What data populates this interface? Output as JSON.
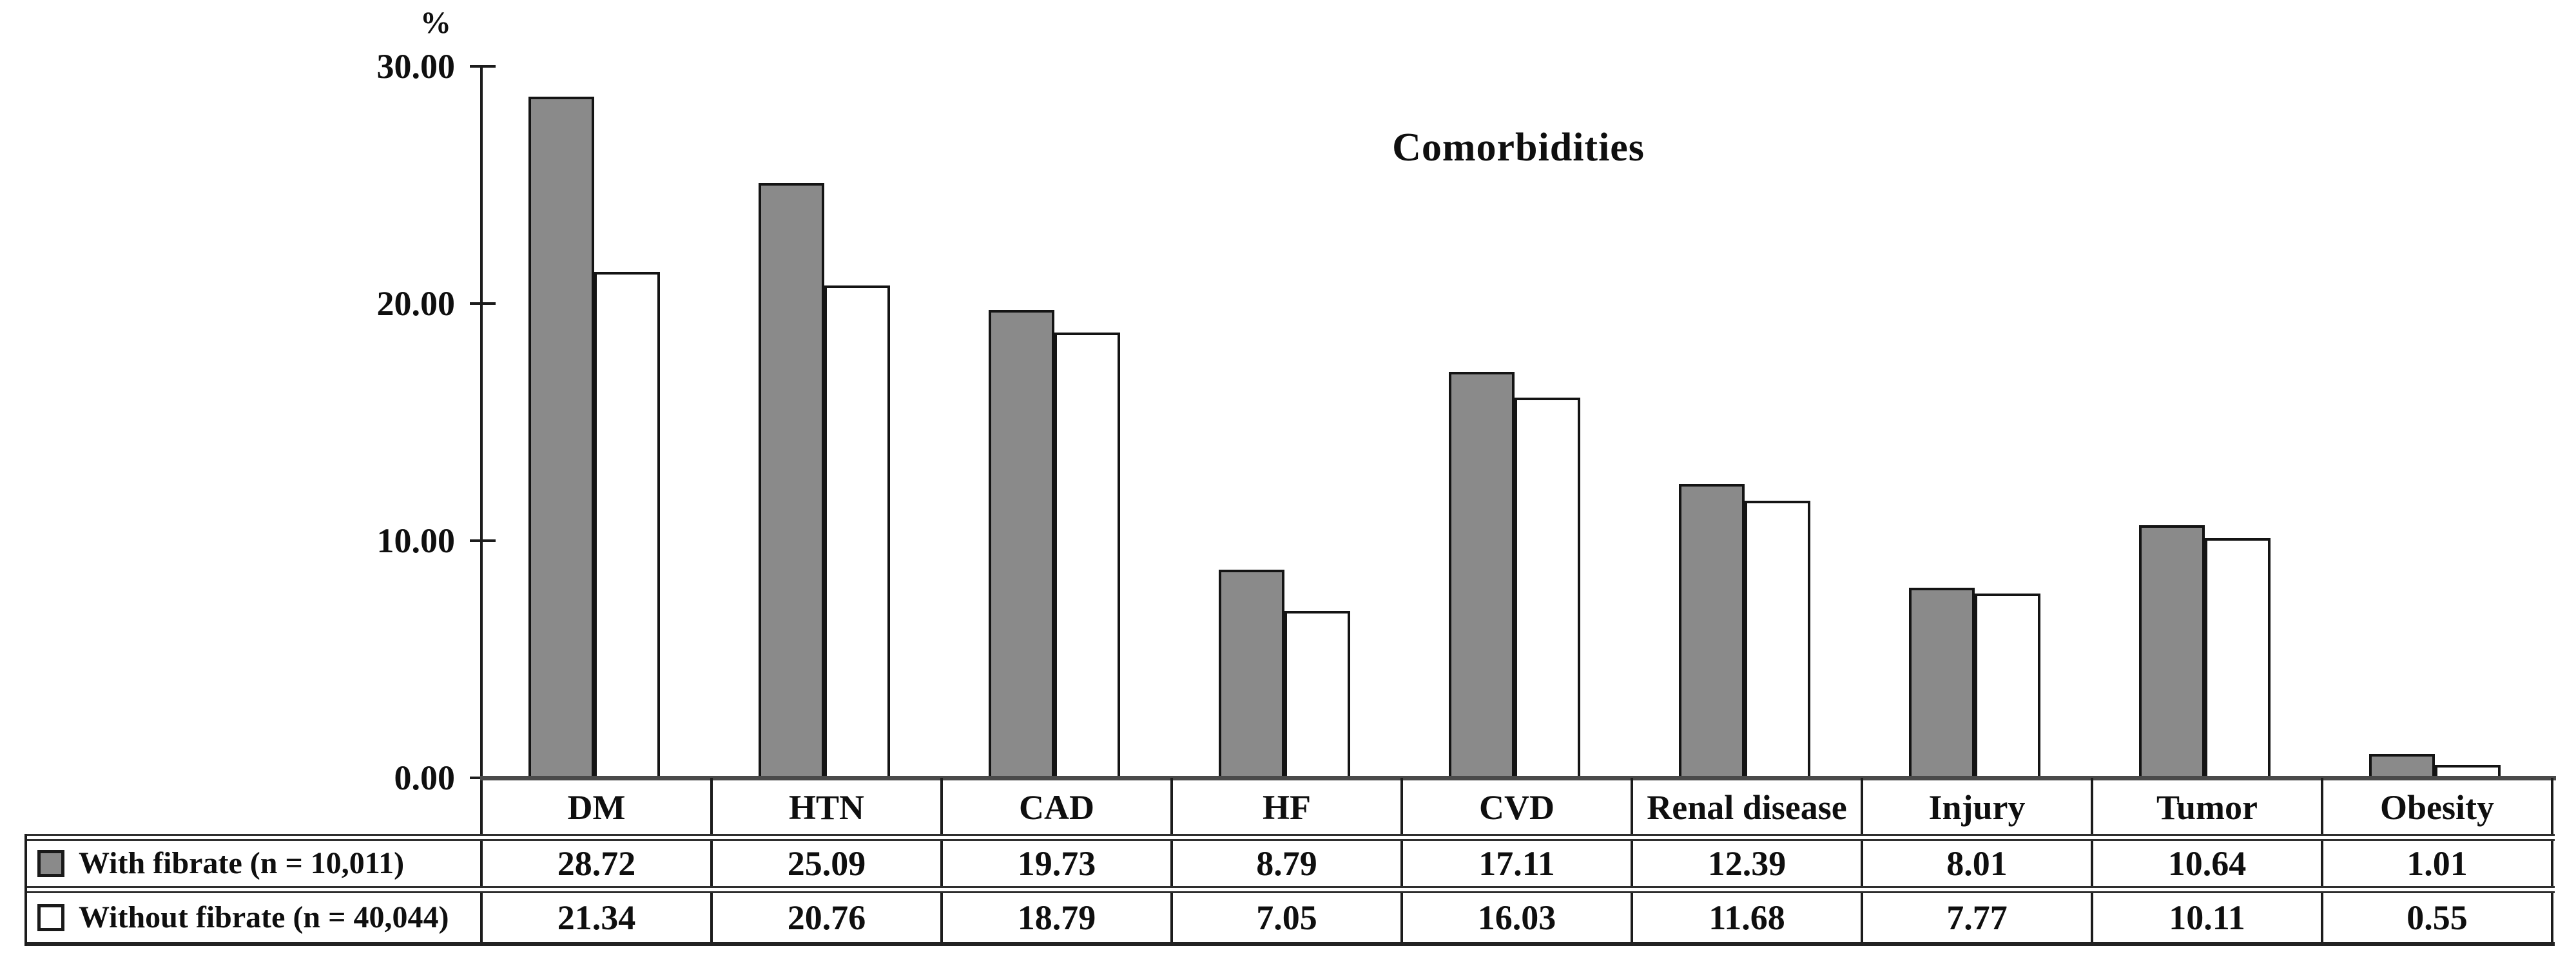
{
  "chart_data": {
    "type": "bar",
    "title": "Comorbidities",
    "y_unit_label": "%",
    "categories": [
      "DM",
      "HTN",
      "CAD",
      "HF",
      "CVD",
      "Renal disease",
      "Injury",
      "Tumor",
      "Obesity"
    ],
    "series": [
      {
        "name": "With fibrate (n = 10,011)",
        "values": [
          28.72,
          25.09,
          19.73,
          8.79,
          17.11,
          12.39,
          8.01,
          10.64,
          1.01
        ],
        "fill_color": "#8a8a8a",
        "swatch": "filled-gray-square"
      },
      {
        "name": "Without fibrate (n = 40,044)",
        "values": [
          21.34,
          20.76,
          18.79,
          7.05,
          16.03,
          11.68,
          7.77,
          10.11,
          0.55
        ],
        "fill_color": "#ffffff",
        "swatch": "outlined-white-square"
      }
    ],
    "ylim": [
      0,
      30
    ],
    "yticks": [
      {
        "label": "30.00",
        "value": 30
      },
      {
        "label": "20.00",
        "value": 20
      },
      {
        "label": "10.00",
        "value": 10
      },
      {
        "label": "0.00",
        "value": 0
      }
    ],
    "grid": false,
    "legend_position": "data-table-left-column",
    "bar_border_color": "#141414",
    "text_color": "#0f0f0f"
  }
}
